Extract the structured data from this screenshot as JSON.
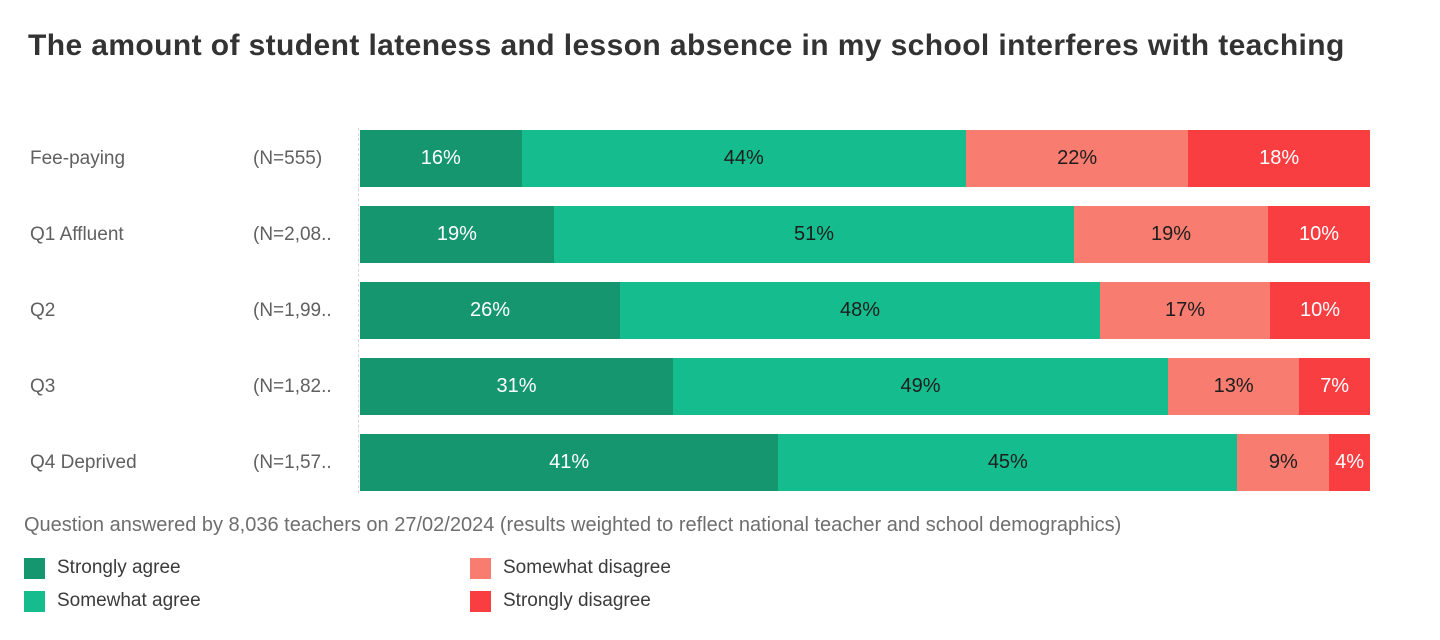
{
  "title": "The amount of student lateness and lesson absence in my school interferes with teaching",
  "footnote": "Question answered by 8,036 teachers on 27/02/2024 (results weighted to reflect national teacher and school demographics)",
  "colors": {
    "strongly_agree": "#16966F",
    "somewhat_agree": "#15BD8E",
    "somewhat_disagree": "#F87C70",
    "strongly_disagree": "#F93E42"
  },
  "chart_data": {
    "type": "bar",
    "orientation": "horizontal",
    "stacked": true,
    "value_suffix": "%",
    "title": "The amount of student lateness and lesson absence in my school interferes with teaching",
    "categories": [
      "Fee-paying",
      "Q1 Affluent",
      "Q2",
      "Q3",
      "Q4 Deprived"
    ],
    "sample_labels": [
      "(N=555)",
      "(N=2,08..",
      "(N=1,99..",
      "(N=1,82..",
      "(N=1,57.."
    ],
    "series": [
      {
        "name": "Strongly agree",
        "color": "#16966F",
        "label_color": "#ffffff",
        "values": [
          16,
          19,
          26,
          31,
          41
        ]
      },
      {
        "name": "Somewhat agree",
        "color": "#15BD8E",
        "label_color": "#1d1d1d",
        "values": [
          44,
          51,
          48,
          49,
          45
        ]
      },
      {
        "name": "Somewhat disagree",
        "color": "#F87C70",
        "label_color": "#1d1d1d",
        "values": [
          22,
          19,
          17,
          13,
          9
        ]
      },
      {
        "name": "Strongly disagree",
        "color": "#F93E42",
        "label_color": "#ffffff",
        "values": [
          18,
          10,
          10,
          7,
          4
        ]
      }
    ],
    "legend_position": "bottom",
    "legend": [
      {
        "label": "Strongly agree",
        "color": "#16966F"
      },
      {
        "label": "Somewhat agree",
        "color": "#15BD8E"
      },
      {
        "label": "Somewhat disagree",
        "color": "#F87C70"
      },
      {
        "label": "Strongly disagree",
        "color": "#F93E42"
      }
    ]
  }
}
